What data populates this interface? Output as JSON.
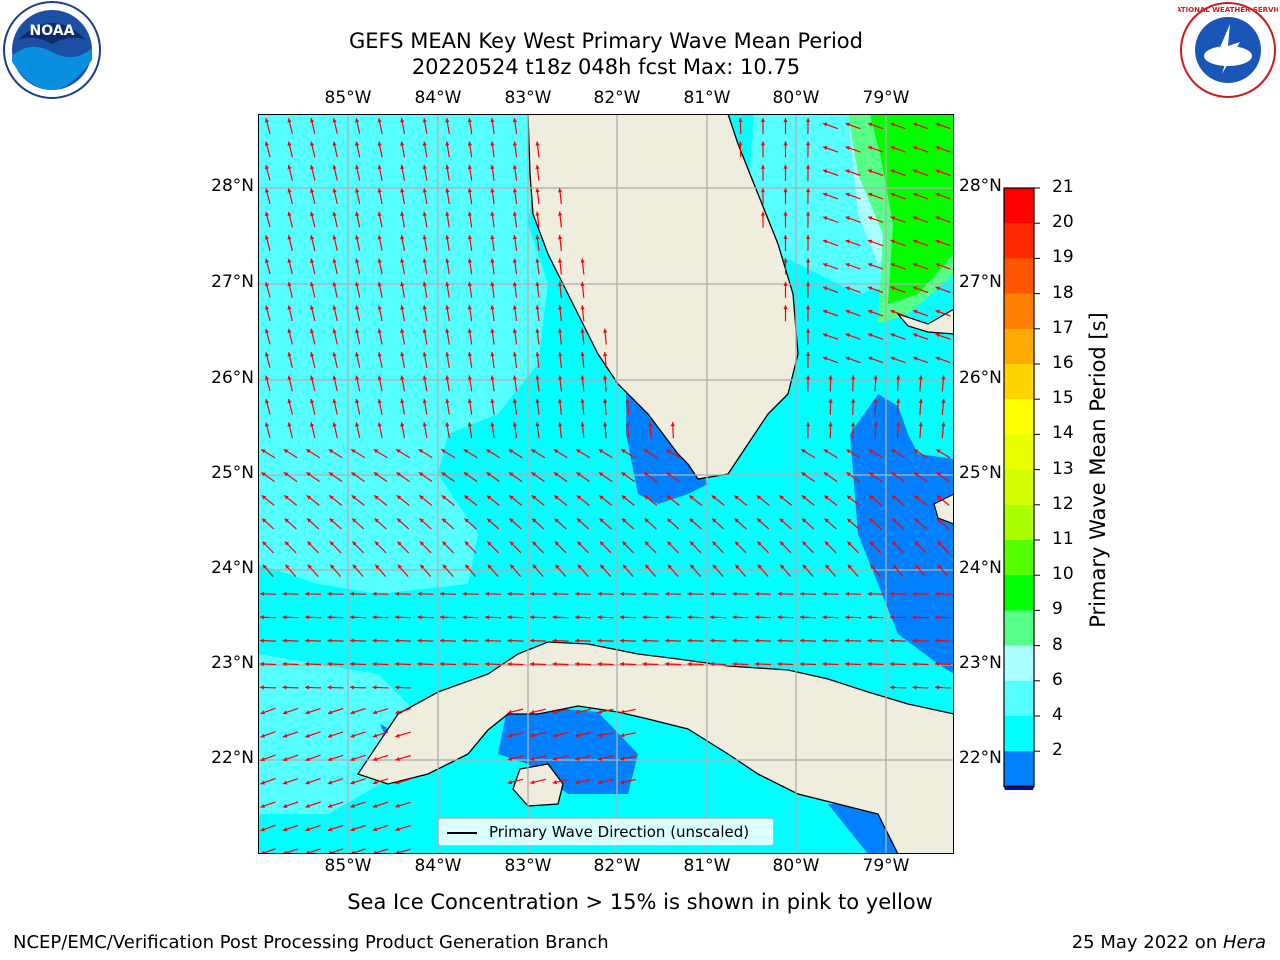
{
  "title": {
    "line1": "GEFS MEAN Key West Primary Wave Mean Period",
    "line2": "20220524 t18z 048h fcst   Max: 10.75"
  },
  "axes": {
    "lon_labels": [
      "85°W",
      "84°W",
      "83°W",
      "82°W",
      "81°W",
      "80°W",
      "79°W"
    ],
    "lat_labels": [
      "28°N",
      "27°N",
      "26°N",
      "25°N",
      "24°N",
      "23°N",
      "22°N"
    ]
  },
  "colorbar": {
    "label": "Primary Wave Mean Period [s]",
    "ticks": [
      "21",
      "20",
      "19",
      "18",
      "17",
      "16",
      "15",
      "14",
      "13",
      "12",
      "11",
      "10",
      "9",
      "8",
      "6",
      "4",
      "2"
    ],
    "colors": [
      "#ff0000",
      "#ff2a00",
      "#ff5500",
      "#ff8000",
      "#ffaa00",
      "#ffd500",
      "#ffff00",
      "#eaff00",
      "#d5ff00",
      "#aaff00",
      "#55ff00",
      "#00ff00",
      "#55ff88",
      "#aaffff",
      "#55ffff",
      "#00ffff",
      "#0080ff",
      "#0000ff"
    ]
  },
  "map_colors": {
    "ocean_main": "#00ffff",
    "ocean_light": "#55ffff",
    "ocean_lighter": "#aaffff",
    "ocean_blue": "#0080ff",
    "green": "#00ff00",
    "green_light": "#55ff88",
    "land": "#efedde",
    "arrow": "#ff0000",
    "grid": "#b0b0b0"
  },
  "legend": {
    "label": "Primary Wave Direction (unscaled)"
  },
  "subnote": "Sea Ice Concentration > 15% is shown in pink to yellow",
  "footer": {
    "left": "NCEP/EMC/Verification Post Processing Product Generation Branch",
    "right_prefix": "25 May 2022 on ",
    "right_host": "Hera"
  },
  "logos": {
    "left": "NOAA",
    "right": "NATIONAL WEATHER SERVICE"
  }
}
